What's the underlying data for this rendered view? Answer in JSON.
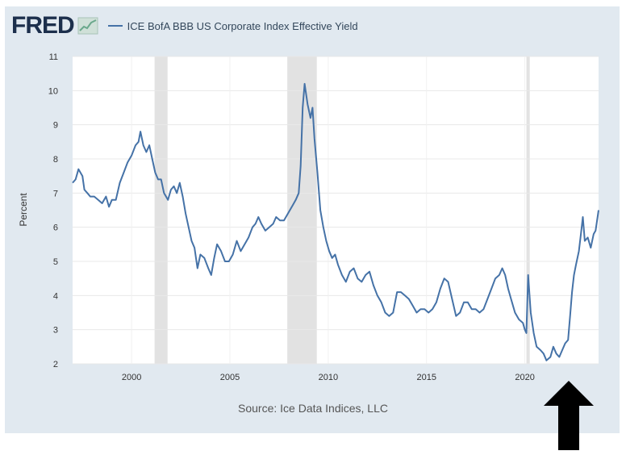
{
  "logo": {
    "text": "FRED",
    "icon": "line-chart-icon"
  },
  "chart_data": {
    "type": "line",
    "title": "ICE BofA BBB US Corporate Index Effective Yield",
    "ylabel": "Percent",
    "xlabel": "",
    "xlim": [
      1997.0,
      2023.75
    ],
    "ylim": [
      2,
      11
    ],
    "x_ticks": [
      2000,
      2005,
      2010,
      2015,
      2020
    ],
    "y_ticks": [
      2,
      3,
      4,
      5,
      6,
      7,
      8,
      9,
      10,
      11
    ],
    "grid": true,
    "recessions": [
      [
        2001.17,
        2001.83
      ],
      [
        2007.92,
        2009.42
      ],
      [
        2020.08,
        2020.25
      ]
    ],
    "series": [
      {
        "name": "ICE BofA BBB US Corporate Index Effective Yield",
        "color": "#4572a7",
        "points": [
          [
            1997.0,
            7.3
          ],
          [
            1997.15,
            7.4
          ],
          [
            1997.3,
            7.7
          ],
          [
            1997.5,
            7.5
          ],
          [
            1997.6,
            7.1
          ],
          [
            1997.75,
            7.0
          ],
          [
            1997.9,
            6.9
          ],
          [
            1998.1,
            6.9
          ],
          [
            1998.3,
            6.8
          ],
          [
            1998.5,
            6.7
          ],
          [
            1998.7,
            6.9
          ],
          [
            1998.85,
            6.6
          ],
          [
            1999.0,
            6.8
          ],
          [
            1999.2,
            6.8
          ],
          [
            1999.4,
            7.3
          ],
          [
            1999.6,
            7.6
          ],
          [
            1999.8,
            7.9
          ],
          [
            2000.0,
            8.1
          ],
          [
            2000.2,
            8.4
          ],
          [
            2000.35,
            8.5
          ],
          [
            2000.45,
            8.8
          ],
          [
            2000.6,
            8.4
          ],
          [
            2000.75,
            8.2
          ],
          [
            2000.9,
            8.4
          ],
          [
            2001.05,
            8.0
          ],
          [
            2001.2,
            7.6
          ],
          [
            2001.35,
            7.4
          ],
          [
            2001.5,
            7.4
          ],
          [
            2001.65,
            7.0
          ],
          [
            2001.85,
            6.8
          ],
          [
            2002.0,
            7.1
          ],
          [
            2002.15,
            7.2
          ],
          [
            2002.3,
            7.0
          ],
          [
            2002.45,
            7.3
          ],
          [
            2002.6,
            6.9
          ],
          [
            2002.75,
            6.4
          ],
          [
            2002.9,
            6.0
          ],
          [
            2003.05,
            5.6
          ],
          [
            2003.2,
            5.4
          ],
          [
            2003.35,
            4.8
          ],
          [
            2003.5,
            5.2
          ],
          [
            2003.7,
            5.1
          ],
          [
            2003.9,
            4.8
          ],
          [
            2004.05,
            4.6
          ],
          [
            2004.2,
            5.1
          ],
          [
            2004.35,
            5.5
          ],
          [
            2004.55,
            5.3
          ],
          [
            2004.75,
            5.0
          ],
          [
            2004.95,
            5.0
          ],
          [
            2005.15,
            5.2
          ],
          [
            2005.35,
            5.6
          ],
          [
            2005.55,
            5.3
          ],
          [
            2005.75,
            5.5
          ],
          [
            2005.95,
            5.7
          ],
          [
            2006.15,
            6.0
          ],
          [
            2006.3,
            6.1
          ],
          [
            2006.45,
            6.3
          ],
          [
            2006.6,
            6.1
          ],
          [
            2006.8,
            5.9
          ],
          [
            2007.0,
            6.0
          ],
          [
            2007.2,
            6.1
          ],
          [
            2007.35,
            6.3
          ],
          [
            2007.55,
            6.2
          ],
          [
            2007.75,
            6.2
          ],
          [
            2007.95,
            6.4
          ],
          [
            2008.15,
            6.6
          ],
          [
            2008.35,
            6.8
          ],
          [
            2008.5,
            7.0
          ],
          [
            2008.6,
            7.8
          ],
          [
            2008.7,
            9.5
          ],
          [
            2008.8,
            10.2
          ],
          [
            2008.95,
            9.6
          ],
          [
            2009.1,
            9.2
          ],
          [
            2009.2,
            9.5
          ],
          [
            2009.3,
            8.6
          ],
          [
            2009.45,
            7.6
          ],
          [
            2009.6,
            6.5
          ],
          [
            2009.75,
            6.0
          ],
          [
            2009.9,
            5.6
          ],
          [
            2010.05,
            5.3
          ],
          [
            2010.2,
            5.1
          ],
          [
            2010.35,
            5.2
          ],
          [
            2010.5,
            4.9
          ],
          [
            2010.7,
            4.6
          ],
          [
            2010.9,
            4.4
          ],
          [
            2011.1,
            4.7
          ],
          [
            2011.3,
            4.8
          ],
          [
            2011.5,
            4.5
          ],
          [
            2011.7,
            4.4
          ],
          [
            2011.9,
            4.6
          ],
          [
            2012.1,
            4.7
          ],
          [
            2012.3,
            4.3
          ],
          [
            2012.5,
            4.0
          ],
          [
            2012.7,
            3.8
          ],
          [
            2012.9,
            3.5
          ],
          [
            2013.1,
            3.4
          ],
          [
            2013.3,
            3.5
          ],
          [
            2013.5,
            4.1
          ],
          [
            2013.7,
            4.1
          ],
          [
            2013.9,
            4.0
          ],
          [
            2014.1,
            3.9
          ],
          [
            2014.3,
            3.7
          ],
          [
            2014.5,
            3.5
          ],
          [
            2014.7,
            3.6
          ],
          [
            2014.9,
            3.6
          ],
          [
            2015.1,
            3.5
          ],
          [
            2015.3,
            3.6
          ],
          [
            2015.5,
            3.8
          ],
          [
            2015.7,
            4.2
          ],
          [
            2015.9,
            4.5
          ],
          [
            2016.1,
            4.4
          ],
          [
            2016.3,
            3.9
          ],
          [
            2016.5,
            3.4
          ],
          [
            2016.7,
            3.5
          ],
          [
            2016.9,
            3.8
          ],
          [
            2017.1,
            3.8
          ],
          [
            2017.3,
            3.6
          ],
          [
            2017.5,
            3.6
          ],
          [
            2017.7,
            3.5
          ],
          [
            2017.9,
            3.6
          ],
          [
            2018.1,
            3.9
          ],
          [
            2018.3,
            4.2
          ],
          [
            2018.5,
            4.5
          ],
          [
            2018.7,
            4.6
          ],
          [
            2018.85,
            4.8
          ],
          [
            2019.0,
            4.6
          ],
          [
            2019.15,
            4.2
          ],
          [
            2019.3,
            3.9
          ],
          [
            2019.5,
            3.5
          ],
          [
            2019.7,
            3.3
          ],
          [
            2019.9,
            3.2
          ],
          [
            2020.0,
            3.0
          ],
          [
            2020.08,
            2.9
          ],
          [
            2020.17,
            4.6
          ],
          [
            2020.3,
            3.5
          ],
          [
            2020.45,
            2.9
          ],
          [
            2020.6,
            2.5
          ],
          [
            2020.8,
            2.4
          ],
          [
            2020.95,
            2.3
          ],
          [
            2021.1,
            2.1
          ],
          [
            2021.3,
            2.2
          ],
          [
            2021.45,
            2.5
          ],
          [
            2021.6,
            2.3
          ],
          [
            2021.75,
            2.2
          ],
          [
            2021.9,
            2.4
          ],
          [
            2022.05,
            2.6
          ],
          [
            2022.2,
            2.7
          ],
          [
            2022.3,
            3.4
          ],
          [
            2022.4,
            4.1
          ],
          [
            2022.5,
            4.6
          ],
          [
            2022.6,
            4.9
          ],
          [
            2022.75,
            5.3
          ],
          [
            2022.85,
            5.8
          ],
          [
            2022.95,
            6.3
          ],
          [
            2023.05,
            5.6
          ],
          [
            2023.2,
            5.7
          ],
          [
            2023.35,
            5.4
          ],
          [
            2023.5,
            5.8
          ],
          [
            2023.6,
            5.9
          ],
          [
            2023.75,
            6.5
          ]
        ]
      }
    ]
  },
  "source": {
    "text": "Source: Ice Data Indices, LLC"
  },
  "annotation": {
    "icon": "arrow-up-icon"
  }
}
